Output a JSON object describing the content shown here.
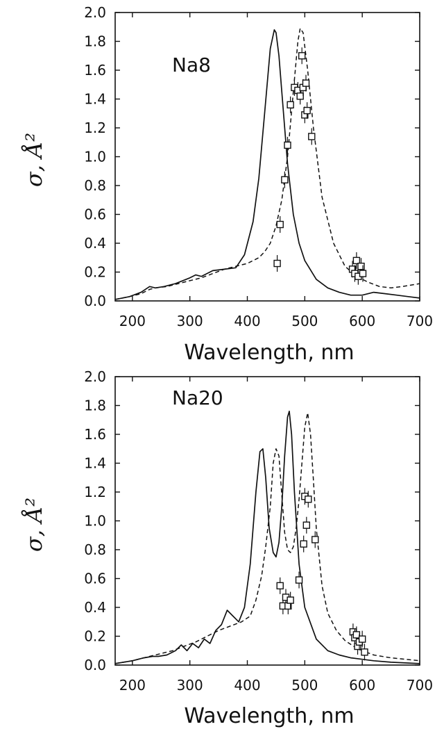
{
  "chart_data": [
    {
      "type": "line",
      "panel_label": "Na8",
      "xlabel": "Wavelength, nm",
      "ylabel": "σ, Å²",
      "xlim": [
        170,
        700
      ],
      "ylim": [
        0,
        2.0
      ],
      "xticks": [
        "200",
        "300",
        "400",
        "500",
        "600",
        "700"
      ],
      "yticks": [
        "0.0",
        "0.2",
        "0.4",
        "0.6",
        "0.8",
        "1.0",
        "1.2",
        "1.4",
        "1.6",
        "1.8",
        "2.0"
      ],
      "grid": false,
      "series": [
        {
          "style": "solid",
          "x": [
            170,
            195,
            215,
            230,
            240,
            255,
            275,
            300,
            310,
            320,
            340,
            360,
            380,
            395,
            410,
            420,
            430,
            440,
            447,
            450,
            455,
            460,
            470,
            480,
            490,
            500,
            520,
            540,
            560,
            580,
            600,
            620,
            640,
            660,
            680,
            700
          ],
          "y": [
            0.01,
            0.03,
            0.06,
            0.1,
            0.09,
            0.1,
            0.12,
            0.16,
            0.18,
            0.17,
            0.21,
            0.22,
            0.23,
            0.32,
            0.55,
            0.85,
            1.3,
            1.75,
            1.88,
            1.86,
            1.7,
            1.45,
            0.95,
            0.6,
            0.4,
            0.28,
            0.15,
            0.09,
            0.06,
            0.04,
            0.04,
            0.06,
            0.05,
            0.04,
            0.03,
            0.02
          ]
        },
        {
          "style": "dashed",
          "x": [
            170,
            195,
            215,
            230,
            240,
            260,
            280,
            300,
            320,
            340,
            360,
            380,
            400,
            420,
            430,
            440,
            450,
            460,
            470,
            480,
            488,
            492,
            497,
            505,
            515,
            530,
            550,
            570,
            590,
            610,
            630,
            650,
            670,
            700
          ],
          "y": [
            0.01,
            0.03,
            0.05,
            0.08,
            0.09,
            0.1,
            0.12,
            0.14,
            0.16,
            0.19,
            0.22,
            0.24,
            0.26,
            0.3,
            0.34,
            0.4,
            0.52,
            0.7,
            1.0,
            1.45,
            1.8,
            1.89,
            1.86,
            1.6,
            1.2,
            0.72,
            0.4,
            0.24,
            0.17,
            0.13,
            0.1,
            0.09,
            0.1,
            0.12
          ]
        }
      ],
      "measured_points": {
        "x": [
          452,
          457,
          465,
          470,
          475,
          482,
          488,
          492,
          495,
          497,
          500,
          502,
          504,
          512,
          583,
          587,
          590,
          593,
          598,
          601
        ],
        "y": [
          0.26,
          0.53,
          0.84,
          1.08,
          1.36,
          1.48,
          1.46,
          1.42,
          1.7,
          1.48,
          1.29,
          1.51,
          1.32,
          1.14,
          0.22,
          0.19,
          0.28,
          0.17,
          0.24,
          0.19
        ]
      }
    },
    {
      "type": "line",
      "panel_label": "Na20",
      "xlabel": "Wavelength, nm",
      "ylabel": "σ, Å²",
      "xlim": [
        170,
        700
      ],
      "ylim": [
        0,
        2.0
      ],
      "xticks": [
        "200",
        "300",
        "400",
        "500",
        "600",
        "700"
      ],
      "yticks": [
        "0.0",
        "0.2",
        "0.4",
        "0.6",
        "0.8",
        "1.0",
        "1.2",
        "1.4",
        "1.6",
        "1.8",
        "2.0"
      ],
      "grid": false,
      "series": [
        {
          "style": "solid",
          "x": [
            170,
            200,
            220,
            235,
            245,
            260,
            275,
            285,
            295,
            305,
            315,
            325,
            335,
            345,
            355,
            365,
            375,
            385,
            395,
            405,
            415,
            422,
            427,
            432,
            438,
            445,
            450,
            455,
            460,
            465,
            470,
            473,
            477,
            482,
            490,
            500,
            520,
            540,
            560,
            580,
            600,
            620,
            650,
            700
          ],
          "y": [
            0.01,
            0.03,
            0.05,
            0.06,
            0.06,
            0.07,
            0.1,
            0.14,
            0.1,
            0.15,
            0.12,
            0.18,
            0.15,
            0.24,
            0.28,
            0.38,
            0.34,
            0.3,
            0.4,
            0.7,
            1.2,
            1.48,
            1.5,
            1.3,
            0.95,
            0.78,
            0.75,
            0.85,
            1.1,
            1.45,
            1.72,
            1.76,
            1.6,
            1.2,
            0.7,
            0.4,
            0.18,
            0.1,
            0.07,
            0.05,
            0.04,
            0.03,
            0.02,
            0.01
          ]
        },
        {
          "style": "dashed",
          "x": [
            170,
            200,
            230,
            250,
            270,
            290,
            310,
            330,
            350,
            370,
            390,
            405,
            415,
            425,
            432,
            440,
            445,
            450,
            455,
            460,
            465,
            470,
            475,
            480,
            485,
            490,
            495,
            500,
            505,
            510,
            515,
            520,
            530,
            540,
            555,
            570,
            585,
            600,
            620,
            650,
            700
          ],
          "y": [
            0.01,
            0.03,
            0.06,
            0.08,
            0.1,
            0.13,
            0.16,
            0.2,
            0.24,
            0.27,
            0.3,
            0.34,
            0.45,
            0.62,
            0.82,
            1.1,
            1.4,
            1.5,
            1.45,
            1.18,
            0.92,
            0.8,
            0.78,
            0.82,
            0.95,
            1.15,
            1.4,
            1.65,
            1.75,
            1.6,
            1.28,
            0.95,
            0.55,
            0.36,
            0.24,
            0.17,
            0.13,
            0.1,
            0.07,
            0.05,
            0.03
          ]
        }
      ],
      "measured_points": {
        "x": [
          457,
          462,
          467,
          471,
          475,
          490,
          498,
          500,
          503,
          506,
          518,
          584,
          587,
          590,
          592,
          595,
          600,
          604
        ],
        "y": [
          0.55,
          0.41,
          0.47,
          0.41,
          0.45,
          0.59,
          0.84,
          1.17,
          0.97,
          1.15,
          0.87,
          0.23,
          0.19,
          0.21,
          0.13,
          0.16,
          0.18,
          0.09
        ]
      }
    }
  ]
}
